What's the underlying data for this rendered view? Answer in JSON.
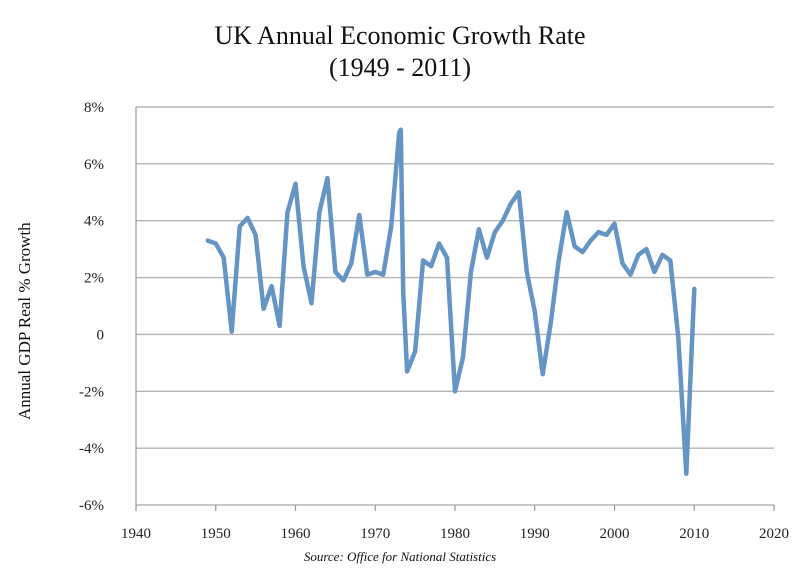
{
  "chart_data": {
    "type": "line",
    "title": "UK Annual Economic Growth Rate",
    "subtitle": "(1949 - 2011)",
    "ylabel": "Annual GDP Real % Growth",
    "source": "Source: Office for National Statistics",
    "xlim": [
      1940,
      2020
    ],
    "ylim": [
      -6,
      8
    ],
    "x_ticks": [
      "1940",
      "1950",
      "1960",
      "1970",
      "1980",
      "1990",
      "2000",
      "2010",
      "2020"
    ],
    "y_ticks": [
      "8%",
      "6%",
      "4%",
      "2%",
      "0",
      "-2%",
      "-4%",
      "-6%"
    ],
    "grid": true,
    "line_color": "#6595c4",
    "series": [
      {
        "x": [
          1949,
          1950,
          1951,
          1952,
          1953,
          1954,
          1955,
          1956,
          1957,
          1958,
          1959,
          1960,
          1961,
          1962,
          1963,
          1964,
          1965,
          1966,
          1967,
          1968,
          1969,
          1970,
          1971,
          1972,
          1973,
          1973.2,
          1973.5,
          1974,
          1975,
          1976,
          1977,
          1978,
          1979,
          1980,
          1981,
          1982,
          1983,
          1984,
          1985,
          1986,
          1987,
          1988,
          1989,
          1990,
          1991,
          1992,
          1993,
          1994,
          1995,
          1996,
          1997,
          1998,
          1999,
          2000,
          2001,
          2002,
          2003,
          2004,
          2005,
          2006,
          2007,
          2008,
          2009,
          2010
        ],
        "y": [
          3.3,
          3.2,
          2.7,
          0.1,
          3.8,
          4.1,
          3.5,
          0.9,
          1.7,
          0.3,
          4.3,
          5.3,
          2.4,
          1.1,
          4.3,
          5.5,
          2.2,
          1.9,
          2.5,
          4.2,
          2.1,
          2.2,
          2.1,
          3.8,
          7.1,
          7.2,
          1.5,
          -1.3,
          -0.6,
          2.6,
          2.4,
          3.2,
          2.7,
          -2.0,
          -0.8,
          2.2,
          3.7,
          2.7,
          3.6,
          4.0,
          4.6,
          5.0,
          2.2,
          0.8,
          -1.4,
          0.4,
          2.6,
          4.3,
          3.1,
          2.9,
          3.3,
          3.6,
          3.5,
          3.9,
          2.5,
          2.1,
          2.8,
          3.0,
          2.2,
          2.8,
          2.6,
          -0.1,
          -4.9,
          1.6
        ]
      }
    ]
  }
}
